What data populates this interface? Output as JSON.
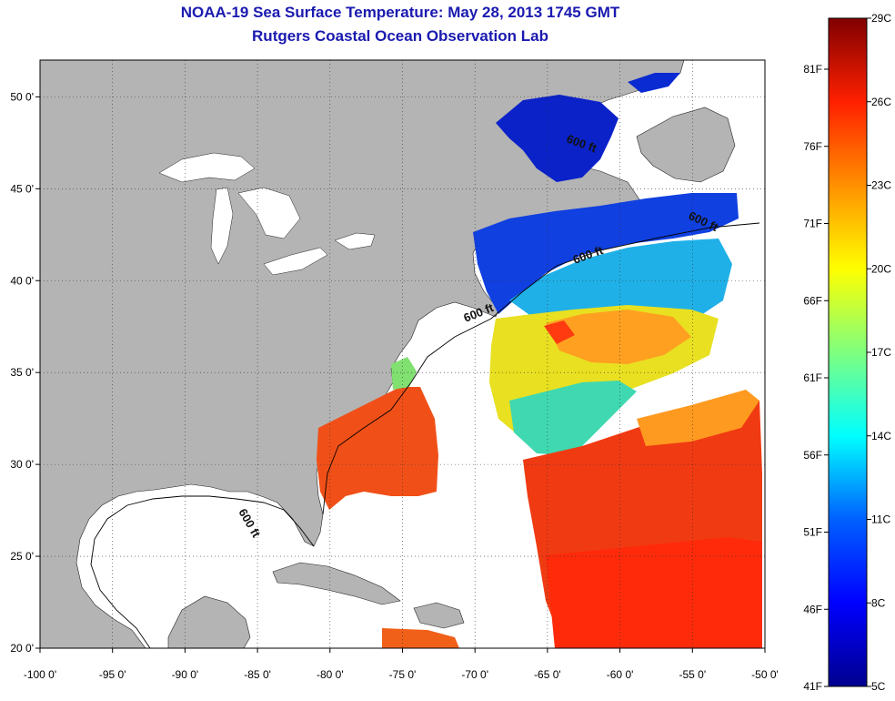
{
  "header": {
    "title": "NOAA-19 Sea Surface Temperature:  May 28, 2013 1745 GMT",
    "subtitle": "Rutgers Coastal Ocean Observation Lab"
  },
  "map": {
    "lon_range": [
      -100,
      -50
    ],
    "lat_range": [
      20,
      52
    ],
    "x_ticks": [
      "-100 0'",
      "-95 0'",
      "-90 0'",
      "-85 0'",
      "-80 0'",
      "-75 0'",
      "-70 0'",
      "-65 0'",
      "-60 0'",
      "-55 0'",
      "-50 0'"
    ],
    "y_ticks": [
      "50 0'",
      "45 0'",
      "40 0'",
      "35 0'",
      "30 0'",
      "25 0'",
      "20 0'"
    ],
    "contour_label": "600 ft",
    "land_color": "#b4b4b4",
    "nodata_color": "#ffffff"
  },
  "colorbar": {
    "celsius_range": [
      5,
      29
    ],
    "celsius_labels": [
      "29C",
      "26C",
      "23C",
      "20C",
      "17C",
      "14C",
      "11C",
      "8C",
      "5C"
    ],
    "fahrenheit_labels": [
      "81F",
      "76F",
      "71F",
      "66F",
      "61F",
      "56F",
      "51F",
      "46F",
      "41F"
    ]
  }
}
